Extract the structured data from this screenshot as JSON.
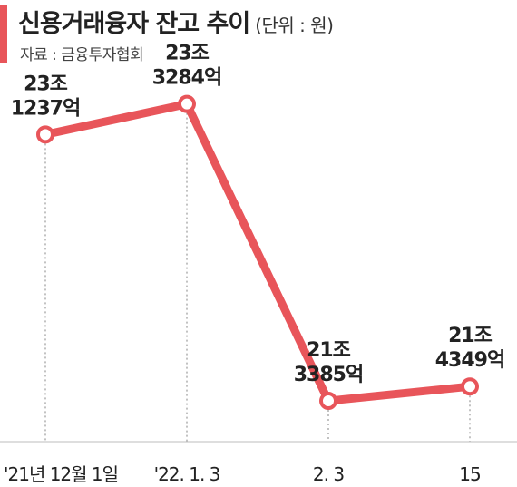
{
  "header": {
    "title": "신용거래융자 잔고 추이",
    "unit": "(단위 : 원)",
    "source": "자료 : 금융투자협회"
  },
  "colors": {
    "accent": "#e8555a",
    "line": "#e8555a",
    "marker_fill": "#ffffff",
    "guide": "#9a9a9a",
    "axis": "#bdbdbd"
  },
  "chart_data": {
    "type": "line",
    "title": "신용거래융자 잔고 추이",
    "unit": "(단위 : 원)",
    "source": "자료 : 금융투자협회",
    "categories": [
      "'21년 12월 1일",
      "'22. 1. 3",
      "2. 3",
      "15"
    ],
    "values": [
      231237,
      233284,
      213385,
      214349
    ],
    "value_unit": "억 원",
    "data_labels": [
      [
        "23조",
        "1237억"
      ],
      [
        "23조",
        "3284억"
      ],
      [
        "21조",
        "3385억"
      ],
      [
        "21조",
        "4349억"
      ]
    ],
    "ylim": [
      205000,
      236000
    ],
    "grid": false,
    "legend": "none"
  }
}
